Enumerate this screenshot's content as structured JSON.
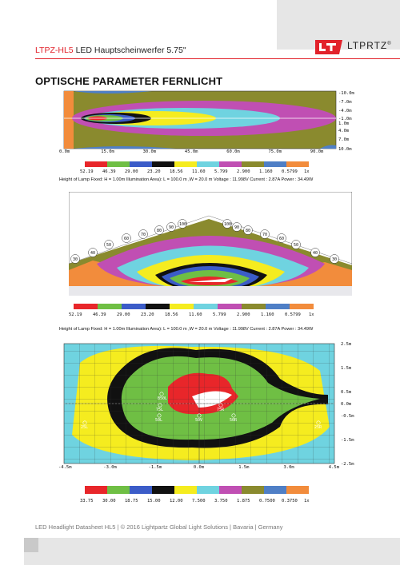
{
  "header": {
    "brand": "LTPZ-HL5",
    "title": " LED Hauptscheinwerfer 5.75\"",
    "logo_text": "LTPRTZ",
    "logo_reg": "®"
  },
  "section_title": "OPTISCHE PARAMETER FERNLICHT",
  "colors": {
    "accent": "#e2222b",
    "red": "#e8262a",
    "green": "#6fbf44",
    "blue": "#3b5cc8",
    "black": "#111111",
    "yellow": "#f5ec1f",
    "cyan": "#6fd3e0",
    "magenta": "#c04fb3",
    "olive": "#8a8a2e",
    "steel": "#4f7fc6",
    "orange": "#f28c3c"
  },
  "plot1": {
    "x_ticks": [
      "0.0m",
      "15.0m",
      "30.0m",
      "45.0m",
      "60.0m",
      "75.0m",
      "90.0m"
    ],
    "y_ticks": [
      "-10.0m",
      "-7.0m",
      "-4.0m",
      "-1.0m",
      "1.0m",
      "4.0m",
      "7.0m",
      "10.0m"
    ],
    "legend": [
      "52.19",
      "46.39",
      "29.00",
      "23.20",
      "18.56",
      "11.60",
      "5.799",
      "2.900",
      "1.160",
      "0.5799",
      "1x"
    ],
    "caption": "Height of Lamp Fixed: H = 1.00m  Illumination Area): L = 100.0 m ,W = 20.0 m  Voltage : 11.998V  Current : 2.87A  Power : 34.49W"
  },
  "plot2": {
    "distance_labels": [
      "30",
      "40",
      "50",
      "60",
      "70",
      "80",
      "90",
      "100",
      "100",
      "90",
      "80",
      "70",
      "60",
      "50",
      "40",
      "30"
    ],
    "legend": [
      "52.19",
      "46.39",
      "29.00",
      "23.20",
      "18.56",
      "11.60",
      "5.799",
      "2.900",
      "1.160",
      "0.5799",
      "1x"
    ],
    "caption": "Height of Lamp Fixed: H = 1.00m  Illumination Area): L = 100.0 m ,W = 20.0 m  Voltage : 11.998V  Current : 2.87A  Power : 34.49W"
  },
  "plot3": {
    "x_ticks": [
      "-4.5m",
      "-3.0m",
      "-1.5m",
      "0.0m",
      "1.5m",
      "3.0m",
      "4.5m"
    ],
    "y_ticks": [
      "2.5m",
      "1.5m",
      "0.5m",
      "0.0m",
      "-0.5m",
      "-1.5m",
      "-2.5m"
    ],
    "points": [
      "B50L",
      "BV",
      "75L",
      "75R",
      "50L",
      "50V",
      "50R",
      "25L",
      "25R"
    ],
    "legend": [
      "33.75",
      "30.00",
      "18.75",
      "15.00",
      "12.00",
      "7.500",
      "3.750",
      "1.875",
      "0.7500",
      "0.3750",
      "1x"
    ]
  },
  "footer": "LED Headlight Datasheet HL5  | © 2016 Lightpartz Global Light Solutions  |  Bavaria  |  Germany"
}
